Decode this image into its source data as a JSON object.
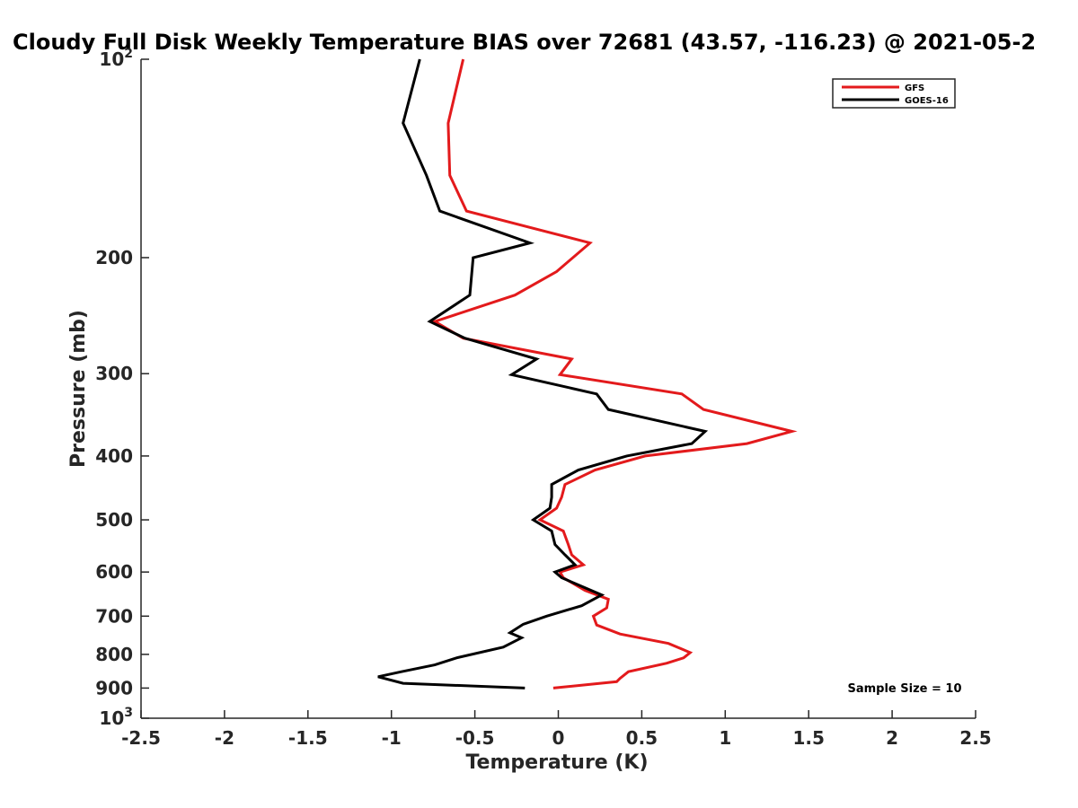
{
  "chart_data": {
    "type": "line",
    "title": "Cloudy Full Disk Weekly Temperature BIAS over 72681 (43.57, -116.23) @ 2021-05-2",
    "xlabel": "Temperature (K)",
    "ylabel": "Pressure (mb)",
    "xlim": [
      -2.5,
      2.5
    ],
    "ylim": [
      100,
      1000
    ],
    "y_scale": "log",
    "y_reversed": true,
    "grid": false,
    "legend_position": "top-right",
    "x_ticks": [
      {
        "value": -2.5,
        "label": "-2.5"
      },
      {
        "value": -2,
        "label": "-2"
      },
      {
        "value": -1.5,
        "label": "-1.5"
      },
      {
        "value": -1,
        "label": "-1"
      },
      {
        "value": -0.5,
        "label": "-0.5"
      },
      {
        "value": 0,
        "label": "0"
      },
      {
        "value": 0.5,
        "label": "0.5"
      },
      {
        "value": 1,
        "label": "1"
      },
      {
        "value": 1.5,
        "label": "1.5"
      },
      {
        "value": 2,
        "label": "2"
      },
      {
        "value": 2.5,
        "label": "2.5"
      }
    ],
    "y_ticks": [
      {
        "value": 100,
        "base": "10",
        "exp": "2"
      },
      {
        "value": 200,
        "base": "200",
        "exp": ""
      },
      {
        "value": 300,
        "base": "300",
        "exp": ""
      },
      {
        "value": 400,
        "base": "400",
        "exp": ""
      },
      {
        "value": 500,
        "base": "500",
        "exp": ""
      },
      {
        "value": 600,
        "base": "600",
        "exp": ""
      },
      {
        "value": 700,
        "base": "700",
        "exp": ""
      },
      {
        "value": 800,
        "base": "800",
        "exp": ""
      },
      {
        "value": 900,
        "base": "900",
        "exp": ""
      },
      {
        "value": 1000,
        "base": "10",
        "exp": "3"
      }
    ],
    "annotation": "Sample Size = 10",
    "series": [
      {
        "name": "GFS",
        "color": "#e31a1c",
        "points": [
          {
            "x": -0.57,
            "p": 100
          },
          {
            "x": -0.66,
            "p": 125
          },
          {
            "x": -0.65,
            "p": 150
          },
          {
            "x": -0.55,
            "p": 170
          },
          {
            "x": 0.19,
            "p": 190
          },
          {
            "x": -0.01,
            "p": 210
          },
          {
            "x": -0.26,
            "p": 228
          },
          {
            "x": -0.74,
            "p": 250
          },
          {
            "x": -0.57,
            "p": 265
          },
          {
            "x": 0.08,
            "p": 285
          },
          {
            "x": 0.01,
            "p": 301
          },
          {
            "x": 0.74,
            "p": 322
          },
          {
            "x": 0.87,
            "p": 340
          },
          {
            "x": 1.4,
            "p": 367
          },
          {
            "x": 1.13,
            "p": 383
          },
          {
            "x": 0.52,
            "p": 400
          },
          {
            "x": 0.22,
            "p": 420
          },
          {
            "x": 0.04,
            "p": 442
          },
          {
            "x": 0.02,
            "p": 462
          },
          {
            "x": -0.01,
            "p": 480
          },
          {
            "x": -0.11,
            "p": 500
          },
          {
            "x": 0.03,
            "p": 520
          },
          {
            "x": 0.06,
            "p": 545
          },
          {
            "x": 0.08,
            "p": 565
          },
          {
            "x": 0.15,
            "p": 585
          },
          {
            "x": 0.01,
            "p": 600
          },
          {
            "x": 0.03,
            "p": 612
          },
          {
            "x": 0.16,
            "p": 640
          },
          {
            "x": 0.3,
            "p": 660
          },
          {
            "x": 0.29,
            "p": 680
          },
          {
            "x": 0.21,
            "p": 700
          },
          {
            "x": 0.23,
            "p": 722
          },
          {
            "x": 0.37,
            "p": 745
          },
          {
            "x": 0.66,
            "p": 770
          },
          {
            "x": 0.79,
            "p": 795
          },
          {
            "x": 0.75,
            "p": 810
          },
          {
            "x": 0.65,
            "p": 825
          },
          {
            "x": 0.42,
            "p": 850
          },
          {
            "x": 0.37,
            "p": 870
          },
          {
            "x": 0.35,
            "p": 880
          },
          {
            "x": -0.03,
            "p": 900
          }
        ]
      },
      {
        "name": "GOES-16",
        "color": "#000000",
        "points": [
          {
            "x": -0.83,
            "p": 100
          },
          {
            "x": -0.93,
            "p": 125
          },
          {
            "x": -0.79,
            "p": 150
          },
          {
            "x": -0.71,
            "p": 170
          },
          {
            "x": -0.17,
            "p": 190
          },
          {
            "x": -0.51,
            "p": 200
          },
          {
            "x": -0.53,
            "p": 228
          },
          {
            "x": -0.77,
            "p": 250
          },
          {
            "x": -0.56,
            "p": 265
          },
          {
            "x": -0.13,
            "p": 285
          },
          {
            "x": -0.28,
            "p": 301
          },
          {
            "x": 0.23,
            "p": 322
          },
          {
            "x": 0.3,
            "p": 340
          },
          {
            "x": 0.88,
            "p": 367
          },
          {
            "x": 0.8,
            "p": 383
          },
          {
            "x": 0.41,
            "p": 400
          },
          {
            "x": 0.12,
            "p": 420
          },
          {
            "x": -0.04,
            "p": 442
          },
          {
            "x": -0.04,
            "p": 462
          },
          {
            "x": -0.05,
            "p": 480
          },
          {
            "x": -0.15,
            "p": 500
          },
          {
            "x": -0.04,
            "p": 520
          },
          {
            "x": -0.02,
            "p": 545
          },
          {
            "x": 0.04,
            "p": 565
          },
          {
            "x": 0.1,
            "p": 585
          },
          {
            "x": -0.02,
            "p": 600
          },
          {
            "x": 0.02,
            "p": 612
          },
          {
            "x": 0.26,
            "p": 650
          },
          {
            "x": 0.14,
            "p": 675
          },
          {
            "x": -0.07,
            "p": 700
          },
          {
            "x": -0.21,
            "p": 720
          },
          {
            "x": -0.29,
            "p": 742
          },
          {
            "x": -0.22,
            "p": 755
          },
          {
            "x": -0.33,
            "p": 780
          },
          {
            "x": -0.61,
            "p": 810
          },
          {
            "x": -0.74,
            "p": 830
          },
          {
            "x": -0.94,
            "p": 850
          },
          {
            "x": -1.08,
            "p": 865
          },
          {
            "x": -0.93,
            "p": 885
          },
          {
            "x": -0.2,
            "p": 900
          }
        ]
      }
    ]
  }
}
